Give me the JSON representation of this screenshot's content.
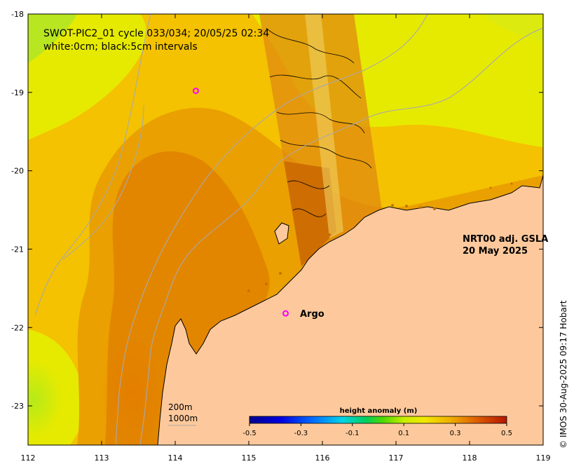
{
  "title_line1": "SWOT-PIC2_01 cycle 033/034; 20/05/25 02:34",
  "title_line2": "white:0cm; black:5cm intervals",
  "product_line1": "NRT00 adj. GSLA",
  "product_line2": "20 May 2025",
  "argo_label": "Argo",
  "depth_label_1": "200m",
  "depth_label_2": "1000m",
  "credit": "© IMOS 30-Aug-2025 09:17 Hobart",
  "x_ticks": [
    "112",
    "113",
    "114",
    "115",
    "116",
    "117",
    "118",
    "119"
  ],
  "y_ticks": [
    "-18",
    "-19",
    "-20",
    "-21",
    "-22",
    "-23"
  ],
  "colorbar": {
    "title": "height anomaly (m)",
    "ticks": [
      "-0.5",
      "-0.3",
      "-0.1",
      "0.1",
      "0.3",
      "0.5"
    ],
    "range": [
      -0.5,
      0.5
    ]
  },
  "map": {
    "lon_range": [
      112,
      119
    ],
    "lat_range": [
      -23.5,
      -18
    ],
    "argo_floats": [
      {
        "lon": 114.28,
        "lat": -18.98
      },
      {
        "lon": 115.5,
        "lat": -21.82
      }
    ],
    "colors": {
      "land": "#fdc99c",
      "anomaly_low": "#a8e61e",
      "anomaly_mid": "#f2e800",
      "anomaly_high": "#e07800",
      "argo_marker": "#ff00ff",
      "bathymetry": "#a9a9a9"
    }
  }
}
